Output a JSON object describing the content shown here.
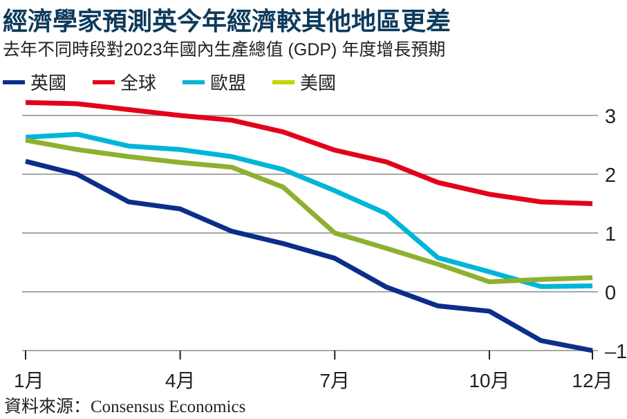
{
  "header": {
    "title": "經濟學家預測英今年經濟較其他地區更差",
    "subtitle": "去年不同時段對2023年國內生產總值 (GDP) 年度增長預期"
  },
  "source": "資料來源：Consensus Economics",
  "chart_data": {
    "type": "line",
    "title": "經濟學家預測英今年經濟較其他地區更差",
    "subtitle": "去年不同時段對2023年國內生產總值 (GDP) 年度增長預期",
    "xlabel": "",
    "ylabel": "",
    "x": [
      1,
      2,
      3,
      4,
      5,
      6,
      7,
      8,
      9,
      10,
      11,
      12
    ],
    "x_tick_values": [
      1,
      4,
      7,
      10,
      12
    ],
    "x_tick_labels": [
      "1月",
      "4月",
      "7月",
      "10月",
      "12月"
    ],
    "y_ticks": [
      3,
      2,
      1,
      0,
      -1
    ],
    "y_tick_labels": [
      "3",
      "2",
      "1",
      "0",
      "–1"
    ],
    "ylim": [
      -1,
      3.3
    ],
    "xlim": [
      1,
      12
    ],
    "grid": true,
    "y_axis_side": "right",
    "legend_position": "top-left",
    "series": [
      {
        "name": "英國",
        "color": "#0b2e8a",
        "values": [
          2.22,
          2.0,
          1.53,
          1.41,
          1.03,
          0.82,
          0.57,
          0.08,
          -0.24,
          -0.33,
          -0.83,
          -1.0
        ]
      },
      {
        "name": "全球",
        "color": "#e3001b",
        "values": [
          3.22,
          3.2,
          3.1,
          3.0,
          2.92,
          2.72,
          2.41,
          2.21,
          1.86,
          1.66,
          1.53,
          1.5
        ]
      },
      {
        "name": "歐盟",
        "color": "#00b5d8",
        "values": [
          2.63,
          2.68,
          2.48,
          2.42,
          2.3,
          2.08,
          1.72,
          1.33,
          0.58,
          0.34,
          0.09,
          0.1
        ]
      },
      {
        "name": "美國",
        "color": "#8db12e",
        "legend_color": "#c4d600",
        "values": [
          2.58,
          2.42,
          2.3,
          2.2,
          2.12,
          1.78,
          1.0,
          0.74,
          0.47,
          0.17,
          0.21,
          0.24
        ]
      }
    ]
  }
}
